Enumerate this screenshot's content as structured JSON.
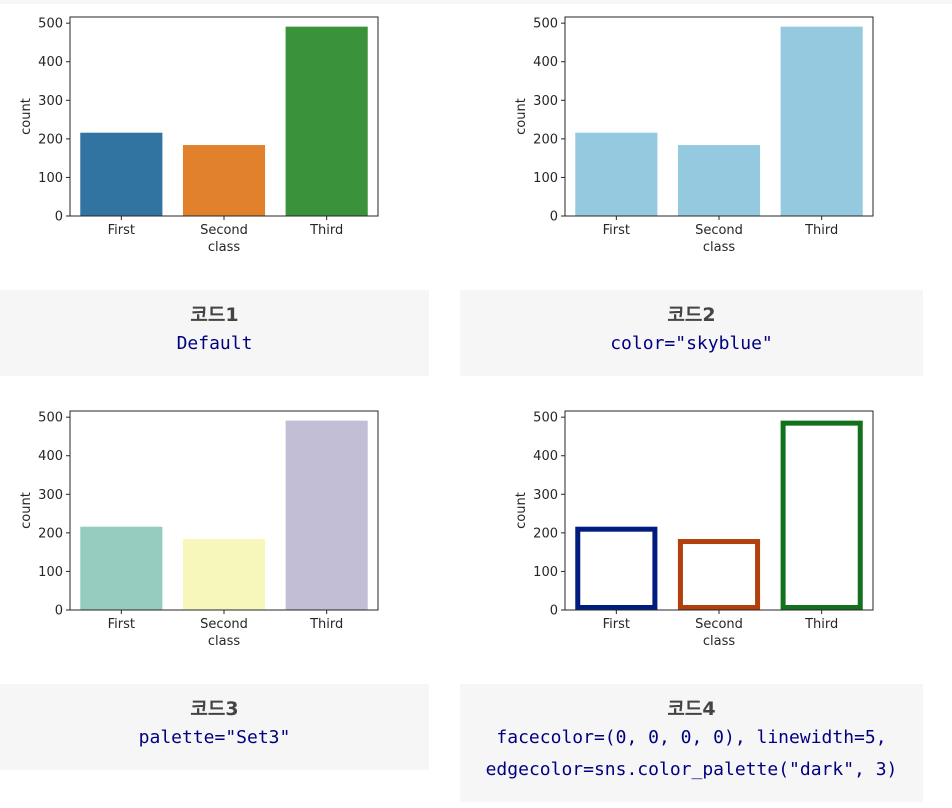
{
  "chart_data": [
    {
      "type": "bar",
      "categories": [
        "First",
        "Second",
        "Third"
      ],
      "values": [
        216,
        184,
        491
      ],
      "xlabel": "class",
      "ylabel": "count",
      "ylim": [
        0,
        516
      ],
      "yticks": [
        0,
        100,
        200,
        300,
        400,
        500
      ],
      "style": "filled",
      "colors": [
        "#3274a1",
        "#e1812c",
        "#3a923a"
      ]
    },
    {
      "type": "bar",
      "categories": [
        "First",
        "Second",
        "Third"
      ],
      "values": [
        216,
        184,
        491
      ],
      "xlabel": "class",
      "ylabel": "count",
      "ylim": [
        0,
        516
      ],
      "yticks": [
        0,
        100,
        200,
        300,
        400,
        500
      ],
      "style": "filled",
      "colors": [
        "#95c9df",
        "#95c9df",
        "#95c9df"
      ]
    },
    {
      "type": "bar",
      "categories": [
        "First",
        "Second",
        "Third"
      ],
      "values": [
        216,
        184,
        491
      ],
      "xlabel": "class",
      "ylabel": "count",
      "ylim": [
        0,
        516
      ],
      "yticks": [
        0,
        100,
        200,
        300,
        400,
        500
      ],
      "style": "filled",
      "colors": [
        "#96cbbf",
        "#f7f7bb",
        "#c1bed6"
      ]
    },
    {
      "type": "bar",
      "categories": [
        "First",
        "Second",
        "Third"
      ],
      "values": [
        216,
        184,
        491
      ],
      "xlabel": "class",
      "ylabel": "count",
      "ylim": [
        0,
        516
      ],
      "yticks": [
        0,
        100,
        200,
        300,
        400,
        500
      ],
      "style": "outline",
      "colors": [
        "#001c7f",
        "#b1400d",
        "#12711c"
      ]
    }
  ],
  "captions": [
    {
      "title": "코드1",
      "code": [
        "Default"
      ]
    },
    {
      "title": "코드2",
      "code": [
        "color=\"skyblue\""
      ]
    },
    {
      "title": "코드3",
      "code": [
        "palette=\"Set3\""
      ]
    },
    {
      "title": "코드4",
      "code": [
        "facecolor=(0, 0, 0, 0), linewidth=5,",
        "edgecolor=sns.color_palette(\"dark\", 3)"
      ]
    }
  ]
}
